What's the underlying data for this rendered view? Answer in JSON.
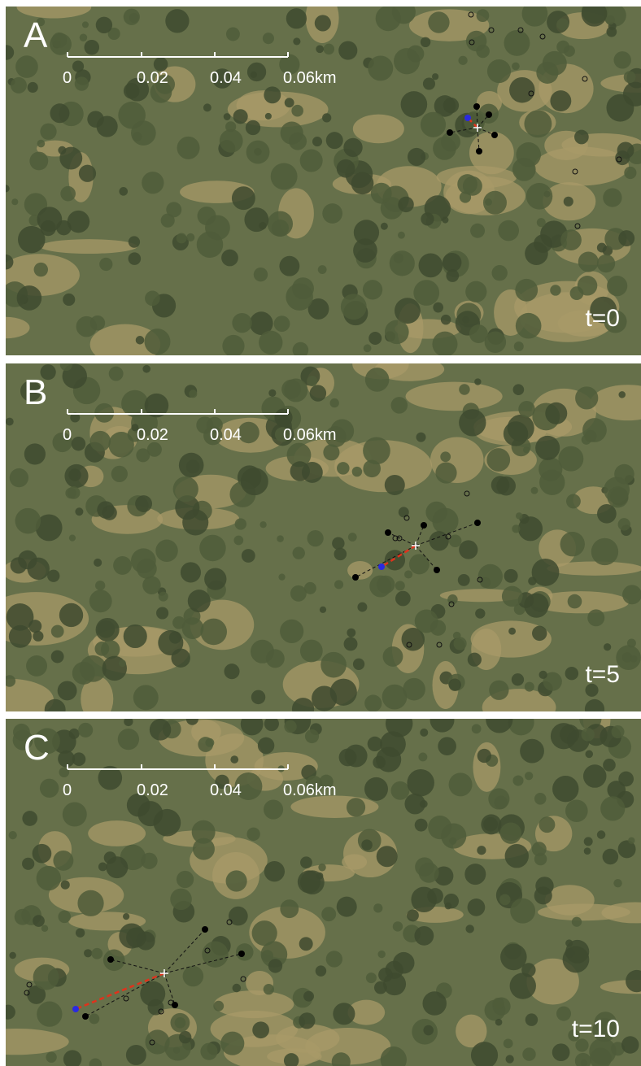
{
  "panels": [
    {
      "label": "A",
      "time": "t=0",
      "scale_labels": [
        "0",
        "0.02",
        "0.04",
        "0.06km"
      ]
    },
    {
      "label": "B",
      "time": "t=5",
      "scale_labels": [
        "0",
        "0.02",
        "0.04",
        "0.06km"
      ]
    },
    {
      "label": "C",
      "time": "t=10",
      "scale_labels": [
        "0",
        "0.02",
        "0.04",
        "0.06km"
      ]
    }
  ]
}
